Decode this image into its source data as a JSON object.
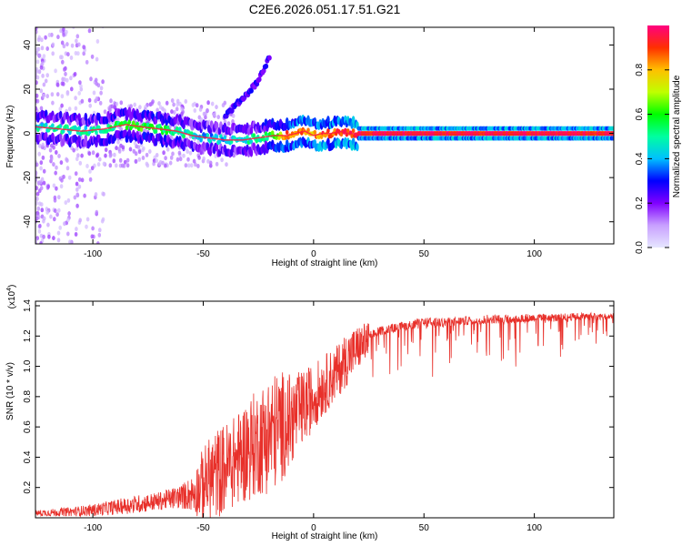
{
  "title": "C2E6.2026.051.17.51.G21",
  "chart_data": [
    {
      "type": "heatmap",
      "title": "C2E6.2026.051.17.51.G21",
      "xlabel": "Height of straight line (km)",
      "ylabel": "Frequency (Hz)",
      "xlim": [
        -126,
        136
      ],
      "ylim": [
        -50,
        48
      ],
      "xticks": [
        "-100",
        "-50",
        "0",
        "50",
        "100"
      ],
      "yticks": [
        "40",
        "20",
        "0",
        "-20",
        "-40"
      ],
      "xtick_values": [
        -100,
        -50,
        0,
        50,
        100
      ],
      "ytick_values": [
        40,
        20,
        0,
        -20,
        -40
      ],
      "colorbar": {
        "label": "Normalized spectral amplitude",
        "ticks": [
          "0.0",
          "0.2",
          "0.4",
          "0.6",
          "0.8"
        ],
        "tick_values": [
          0.0,
          0.2,
          0.4,
          0.6,
          0.8
        ],
        "range": [
          0,
          1
        ],
        "stops": [
          "#e6e6ff",
          "#c8a0ff",
          "#8000ff",
          "#0000ff",
          "#00c0ff",
          "#00ffa0",
          "#00ff00",
          "#c0ff00",
          "#ffc000",
          "#ff3000",
          "#ff0080"
        ]
      },
      "ridge": {
        "x": [
          -126,
          -115,
          -105,
          -95,
          -85,
          -78,
          -70,
          -62,
          -55,
          -48,
          -40,
          -32,
          -25,
          -18,
          -12,
          -8,
          -4,
          0,
          4,
          8,
          12,
          16,
          20,
          136
        ],
        "freq": [
          3,
          2,
          1,
          2,
          4,
          3,
          2,
          1,
          -1,
          -2,
          -3,
          -3,
          -2,
          -1,
          -1,
          0,
          1,
          -1,
          0,
          0,
          1,
          0,
          0,
          0
        ],
        "amp": [
          0.45,
          0.5,
          0.45,
          0.5,
          0.55,
          0.6,
          0.55,
          0.5,
          0.45,
          0.4,
          0.4,
          0.45,
          0.5,
          0.6,
          0.85,
          0.8,
          0.85,
          0.8,
          0.9,
          0.85,
          0.92,
          0.9,
          0.95,
          0.95
        ]
      },
      "secondary_track": {
        "x": [
          -40,
          -35,
          -30,
          -25,
          -22,
          -20
        ],
        "freq": [
          8,
          13,
          18,
          24,
          30,
          35
        ]
      }
    },
    {
      "type": "line",
      "xlabel": "Height of straight line (km)",
      "ylabel": "SNR (10 * v/v)",
      "yscale_label": "(x10",
      "yscale_exponent": "4",
      "yscale_suffix": ")",
      "xlim": [
        -126,
        136
      ],
      "ylim": [
        0,
        1.43
      ],
      "xticks": [
        "-100",
        "-50",
        "0",
        "50",
        "100"
      ],
      "yticks": [
        "1.4",
        "1.2",
        "1.0",
        "0.8",
        "0.6",
        "0.4",
        "0.2"
      ],
      "xtick_values": [
        -100,
        -50,
        0,
        50,
        100
      ],
      "ytick_values": [
        1.4,
        1.2,
        1.0,
        0.8,
        0.6,
        0.4,
        0.2
      ],
      "series": [
        {
          "name": "SNR",
          "color": "#e8302a",
          "envelope_x": [
            -126,
            -110,
            -100,
            -90,
            -80,
            -70,
            -60,
            -55,
            -50,
            -45,
            -40,
            -35,
            -30,
            -25,
            -20,
            -15,
            -10,
            -5,
            0,
            5,
            10,
            15,
            20,
            25,
            30,
            40,
            50,
            60,
            70,
            80,
            90,
            100,
            110,
            120,
            136
          ],
          "envelope_mean": [
            0.03,
            0.04,
            0.05,
            0.07,
            0.09,
            0.11,
            0.14,
            0.16,
            0.22,
            0.28,
            0.33,
            0.38,
            0.45,
            0.5,
            0.55,
            0.6,
            0.65,
            0.72,
            0.8,
            0.88,
            0.95,
            1.05,
            1.12,
            1.18,
            1.22,
            1.25,
            1.27,
            1.28,
            1.29,
            1.3,
            1.3,
            1.31,
            1.31,
            1.32,
            1.32
          ],
          "envelope_noise": [
            0.02,
            0.03,
            0.04,
            0.05,
            0.06,
            0.06,
            0.08,
            0.12,
            0.25,
            0.3,
            0.3,
            0.3,
            0.35,
            0.35,
            0.4,
            0.38,
            0.3,
            0.25,
            0.22,
            0.2,
            0.18,
            0.18,
            0.15,
            0.12,
            0.1,
            0.1,
            0.12,
            0.1,
            0.1,
            0.1,
            0.1,
            0.09,
            0.09,
            0.08,
            0.08
          ]
        }
      ]
    }
  ]
}
